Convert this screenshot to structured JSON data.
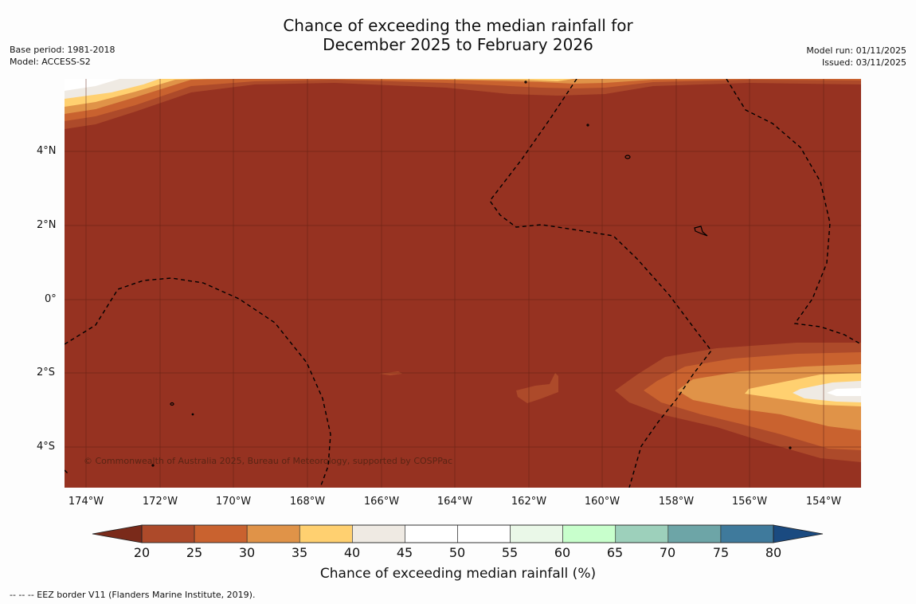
{
  "header": {
    "title_line1": "Chance of exceeding the median rainfall for",
    "title_line2": "December 2025 to February 2026",
    "base_period": "Base period: 1981-2018",
    "model": "Model: ACCESS-S2",
    "model_run": "Model run: 01/11/2025",
    "issued": "Issued: 03/11/2025"
  },
  "map": {
    "credit": "© Commonwealth of Australia 2025, Bureau of Meteorology, supported by COSPPac",
    "lat_labels": [
      "4°N",
      "2°N",
      "0°",
      "2°S",
      "4°S"
    ],
    "lon_labels": [
      "174°W",
      "172°W",
      "170°W",
      "168°W",
      "166°W",
      "164°W",
      "162°W",
      "160°W",
      "158°W",
      "156°W",
      "154°W"
    ],
    "background_color": "#963221"
  },
  "colorbar": {
    "title": "Chance of exceeding median rainfall (%)",
    "ticks": [
      "20",
      "25",
      "30",
      "35",
      "40",
      "45",
      "50",
      "55",
      "60",
      "65",
      "70",
      "75",
      "80"
    ],
    "low_color": "#7a2a1a",
    "high_color": "#1a4a80",
    "colors": [
      "#ad4a2a",
      "#c9622f",
      "#e09348",
      "#ffd070",
      "#efeae3",
      "#ffffff",
      "#ffffff",
      "#eaf8e8",
      "#c8ffcc",
      "#9dd0bb",
      "#6da5a7",
      "#3f7a9c"
    ]
  },
  "legend": {
    "eez_line": "--  --  -- EEZ border V11 (Flanders Marine Institute, 2019)."
  }
}
